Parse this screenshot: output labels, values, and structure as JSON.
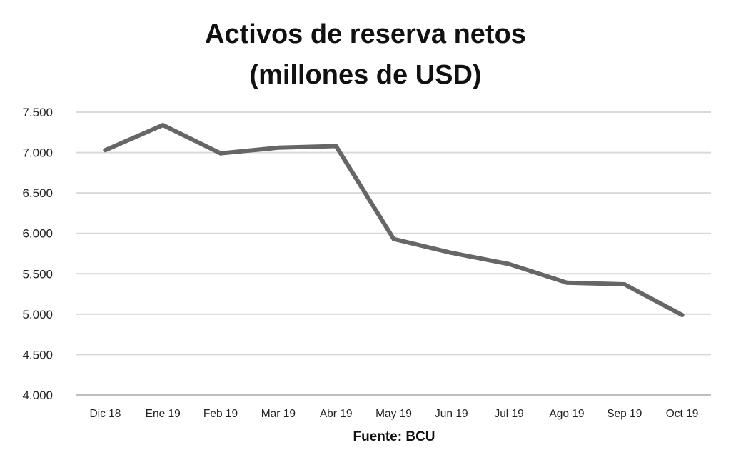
{
  "chart_data": {
    "type": "line",
    "title_lines": [
      "Activos de reserva netos",
      "(millones de USD)"
    ],
    "xlabel": "",
    "ylabel": "",
    "categories": [
      "Dic 18",
      "Ene 19",
      "Feb 19",
      "Mar 19",
      "Abr 19",
      "May 19",
      "Jun 19",
      "Jul 19",
      "Ago 19",
      "Sep 19",
      "Oct 19"
    ],
    "series": [
      {
        "values": [
          7030,
          7340,
          6990,
          7060,
          7080,
          5930,
          5760,
          5620,
          5390,
          5370,
          4990
        ]
      }
    ],
    "ylim": [
      4000,
      7500
    ],
    "y_ticks": [
      4000,
      4500,
      5000,
      5500,
      6000,
      6500,
      7000,
      7500
    ],
    "y_tick_labels": [
      "4.000",
      "4.500",
      "5.000",
      "5.500",
      "6.000",
      "6.500",
      "7.000",
      "7.500"
    ],
    "grid": true,
    "legend": "none",
    "line_color": "#666666",
    "grid_color": "#d9d9d9",
    "source": "Fuente: BCU"
  }
}
